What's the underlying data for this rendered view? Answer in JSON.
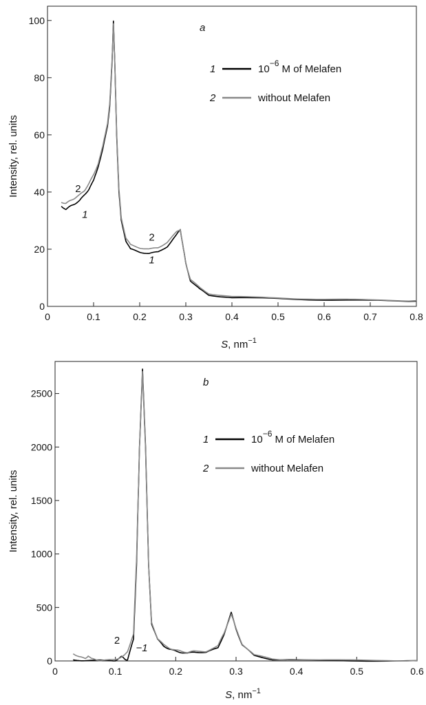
{
  "chart_data": [
    {
      "type": "line",
      "panel_label": "a",
      "xlabel_var": "S",
      "xlabel_unit": ", nm",
      "xlabel_exp": "−1",
      "ylabel": "Intensity, rel. units",
      "xlim": [
        0,
        0.8
      ],
      "ylim": [
        0,
        105
      ],
      "xticks": [
        0,
        0.1,
        0.2,
        0.3,
        0.4,
        0.5,
        0.6,
        0.7,
        0.8
      ],
      "xtick_labels": [
        "0",
        "0.1",
        "0.2",
        "0.3",
        "0.4",
        "0.5",
        "0.6",
        "0.7",
        "0.8"
      ],
      "yticks": [
        0,
        20,
        40,
        60,
        80,
        100
      ],
      "ytick_labels": [
        "0",
        "20",
        "40",
        "60",
        "80",
        "100"
      ],
      "grid": false,
      "legend_position": "top-right",
      "legend": [
        {
          "num": "1",
          "base": "10",
          "exp": "−6",
          "rest": " M of Melafen",
          "color": "#000000"
        },
        {
          "num": "2",
          "text": "without Melafen",
          "color": "#888888"
        }
      ],
      "annotations": [
        {
          "text": "2",
          "x": 0.06,
          "y": 40
        },
        {
          "text": "1",
          "x": 0.075,
          "y": 31
        },
        {
          "text": "2",
          "x": 0.22,
          "y": 23
        },
        {
          "text": "1",
          "x": 0.22,
          "y": 15
        }
      ],
      "series": [
        {
          "name": "1",
          "color": "#000000",
          "x": [
            0.03,
            0.04,
            0.05,
            0.06,
            0.07,
            0.08,
            0.09,
            0.1,
            0.11,
            0.12,
            0.13,
            0.135,
            0.14,
            0.143,
            0.146,
            0.15,
            0.155,
            0.16,
            0.17,
            0.18,
            0.2,
            0.22,
            0.24,
            0.26,
            0.28,
            0.288,
            0.295,
            0.3,
            0.31,
            0.33,
            0.35,
            0.4,
            0.5,
            0.6,
            0.7,
            0.8
          ],
          "y": [
            35,
            34,
            35,
            36,
            37,
            39,
            41,
            44,
            49,
            55,
            63,
            70,
            85,
            100,
            85,
            60,
            40,
            30,
            23,
            20,
            19,
            18.5,
            19,
            21,
            25,
            27,
            20,
            15,
            9,
            6,
            4,
            3,
            2.7,
            2.3,
            2,
            1.8
          ]
        },
        {
          "name": "2",
          "color": "#888888",
          "x": [
            0.03,
            0.04,
            0.05,
            0.06,
            0.07,
            0.08,
            0.09,
            0.1,
            0.11,
            0.12,
            0.13,
            0.135,
            0.14,
            0.143,
            0.146,
            0.15,
            0.155,
            0.16,
            0.17,
            0.18,
            0.2,
            0.22,
            0.24,
            0.26,
            0.28,
            0.288,
            0.295,
            0.3,
            0.31,
            0.33,
            0.35,
            0.4,
            0.5,
            0.6,
            0.7,
            0.8
          ],
          "y": [
            36.5,
            36,
            37,
            38,
            39,
            40.5,
            43,
            46,
            50,
            56,
            64,
            71,
            86,
            99,
            85,
            61,
            41,
            31,
            24,
            21.5,
            20.5,
            20,
            20.5,
            22.5,
            26,
            27,
            20,
            15,
            9.5,
            6.5,
            4.5,
            3.3,
            3,
            2.5,
            2.2,
            2
          ]
        }
      ]
    },
    {
      "type": "line",
      "panel_label": "b",
      "xlabel_var": "S",
      "xlabel_unit": ", nm",
      "xlabel_exp": "−1",
      "ylabel": "Intensity, rel. units",
      "xlim": [
        0,
        0.6
      ],
      "ylim": [
        0,
        2800
      ],
      "xticks": [
        0,
        0.1,
        0.2,
        0.3,
        0.4,
        0.5,
        0.6
      ],
      "xtick_labels": [
        "0",
        "0.1",
        "0.2",
        "0.3",
        "0.4",
        "0.5",
        "0.6"
      ],
      "yticks": [
        0,
        500,
        1000,
        1500,
        2000,
        2500
      ],
      "ytick_labels": [
        "0",
        "500",
        "1000",
        "1500",
        "2000",
        "2500"
      ],
      "grid": false,
      "legend_position": "top-right",
      "legend": [
        {
          "num": "1",
          "base": "10",
          "exp": "−6",
          "rest": " M of Melafen",
          "color": "#000000"
        },
        {
          "num": "2",
          "text": "without Melafen",
          "color": "#888888"
        }
      ],
      "annotations": [
        {
          "text": "2",
          "x": 0.098,
          "y": 160
        },
        {
          "text": "−1",
          "x": 0.134,
          "y": 90
        }
      ],
      "series": [
        {
          "name": "1",
          "color": "#000000",
          "x": [
            0.03,
            0.05,
            0.08,
            0.1,
            0.11,
            0.115,
            0.12,
            0.13,
            0.135,
            0.14,
            0.145,
            0.15,
            0.155,
            0.16,
            0.17,
            0.18,
            0.19,
            0.2,
            0.21,
            0.22,
            0.23,
            0.25,
            0.27,
            0.28,
            0.292,
            0.3,
            0.31,
            0.33,
            0.36,
            0.4,
            0.5,
            0.6
          ],
          "y": [
            10,
            5,
            3,
            5,
            40,
            20,
            10,
            200,
            900,
            2000,
            2730,
            2000,
            900,
            350,
            200,
            140,
            110,
            90,
            80,
            70,
            85,
            80,
            120,
            250,
            450,
            300,
            150,
            50,
            15,
            5,
            3,
            3
          ]
        },
        {
          "name": "2",
          "color": "#888888",
          "x": [
            0.03,
            0.04,
            0.05,
            0.055,
            0.06,
            0.07,
            0.08,
            0.1,
            0.11,
            0.115,
            0.12,
            0.13,
            0.135,
            0.14,
            0.145,
            0.15,
            0.155,
            0.16,
            0.17,
            0.18,
            0.19,
            0.2,
            0.21,
            0.22,
            0.23,
            0.25,
            0.27,
            0.28,
            0.292,
            0.3,
            0.31,
            0.33,
            0.36,
            0.4,
            0.5,
            0.6
          ],
          "y": [
            70,
            40,
            20,
            50,
            20,
            10,
            5,
            10,
            40,
            50,
            90,
            250,
            950,
            2000,
            2700,
            1980,
            900,
            360,
            210,
            150,
            120,
            100,
            90,
            80,
            90,
            90,
            140,
            260,
            440,
            300,
            160,
            55,
            20,
            8,
            5,
            4
          ]
        }
      ]
    }
  ]
}
